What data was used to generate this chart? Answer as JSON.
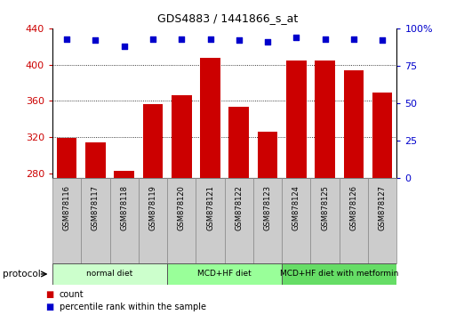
{
  "title": "GDS4883 / 1441866_s_at",
  "samples": [
    "GSM878116",
    "GSM878117",
    "GSM878118",
    "GSM878119",
    "GSM878120",
    "GSM878121",
    "GSM878122",
    "GSM878123",
    "GSM878124",
    "GSM878125",
    "GSM878126",
    "GSM878127"
  ],
  "counts": [
    319,
    314,
    283,
    356,
    366,
    407,
    354,
    326,
    405,
    405,
    394,
    369
  ],
  "percentile_ranks": [
    93,
    92,
    88,
    93,
    93,
    93,
    92,
    91,
    94,
    93,
    93,
    92
  ],
  "ylim_left": [
    275,
    440
  ],
  "ylim_right": [
    0,
    100
  ],
  "yticks_left": [
    280,
    320,
    360,
    400,
    440
  ],
  "yticks_right": [
    0,
    25,
    50,
    75,
    100
  ],
  "yright_labels": [
    "0",
    "25",
    "50",
    "75",
    "100%"
  ],
  "bar_color": "#cc0000",
  "dot_color": "#0000cc",
  "grid_color": "#000000",
  "bar_baseline": 275,
  "protocol_groups": [
    {
      "label": "normal diet",
      "start": 0,
      "end": 3,
      "color": "#ccffcc"
    },
    {
      "label": "MCD+HF diet",
      "start": 4,
      "end": 7,
      "color": "#99ff99"
    },
    {
      "label": "MCD+HF diet with metformin",
      "start": 8,
      "end": 11,
      "color": "#66dd66"
    }
  ],
  "legend_items": [
    {
      "label": "count",
      "color": "#cc0000"
    },
    {
      "label": "percentile rank within the sample",
      "color": "#0000cc"
    }
  ],
  "xlabel_color": "#cc0000",
  "ylabel_right_color": "#0000cc",
  "sample_box_color": "#cccccc",
  "sample_box_edge": "#888888"
}
